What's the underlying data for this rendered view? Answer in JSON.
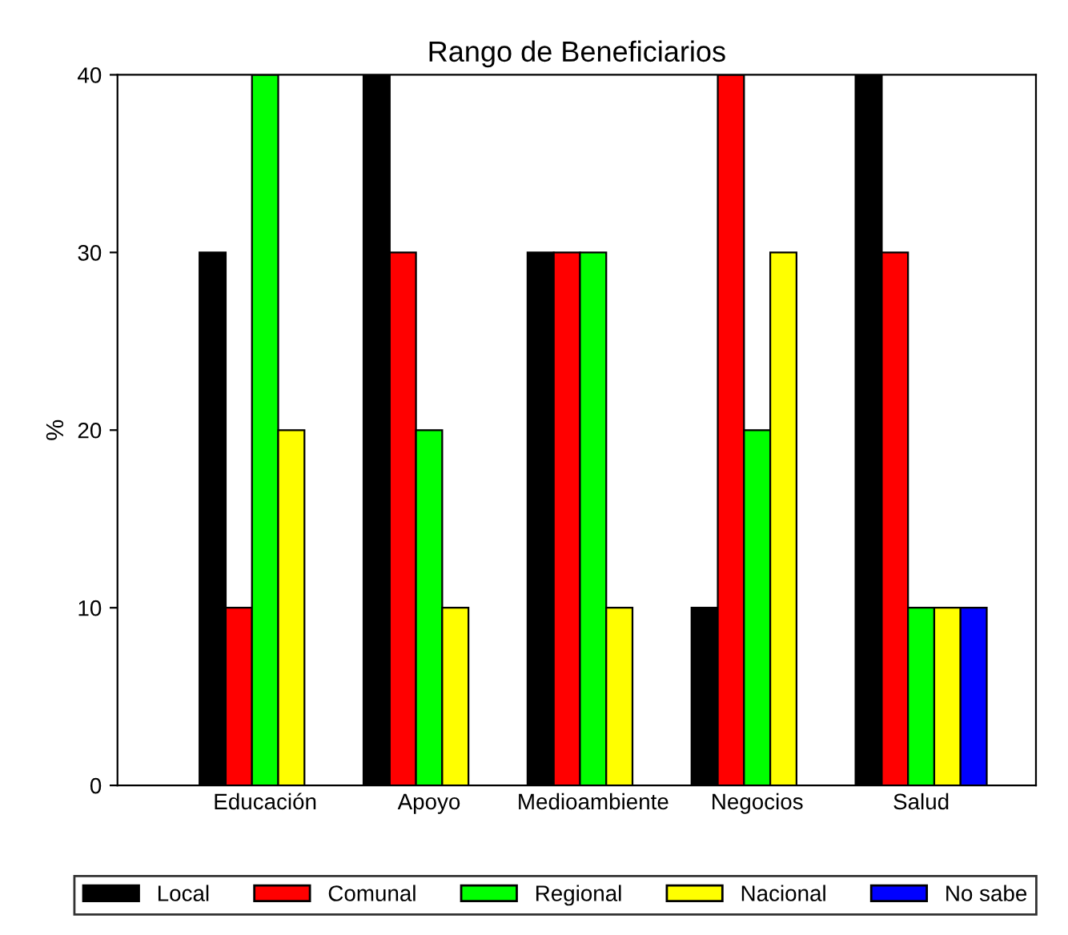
{
  "chart_data": {
    "type": "bar",
    "title": "Rango de Beneficiarios",
    "ylabel": "%",
    "categories": [
      "Educación",
      "Apoyo",
      "Medioambiente",
      "Negocios",
      "Salud"
    ],
    "series": [
      {
        "name": "Local",
        "color": "#000000",
        "values": [
          30,
          40,
          30,
          10,
          40
        ]
      },
      {
        "name": "Comunal",
        "color": "#ff0000",
        "values": [
          10,
          30,
          30,
          40,
          30
        ]
      },
      {
        "name": "Regional",
        "color": "#00ff00",
        "values": [
          40,
          20,
          30,
          20,
          10
        ]
      },
      {
        "name": "Nacional",
        "color": "#ffff00",
        "values": [
          20,
          10,
          10,
          30,
          10
        ]
      },
      {
        "name": "No sabe",
        "color": "#0000ff",
        "values": [
          null,
          null,
          null,
          null,
          10
        ]
      }
    ],
    "ylim": [
      0,
      40
    ],
    "yticks": [
      0,
      10,
      20,
      30,
      40
    ],
    "grid": false,
    "legend": "bottom"
  }
}
